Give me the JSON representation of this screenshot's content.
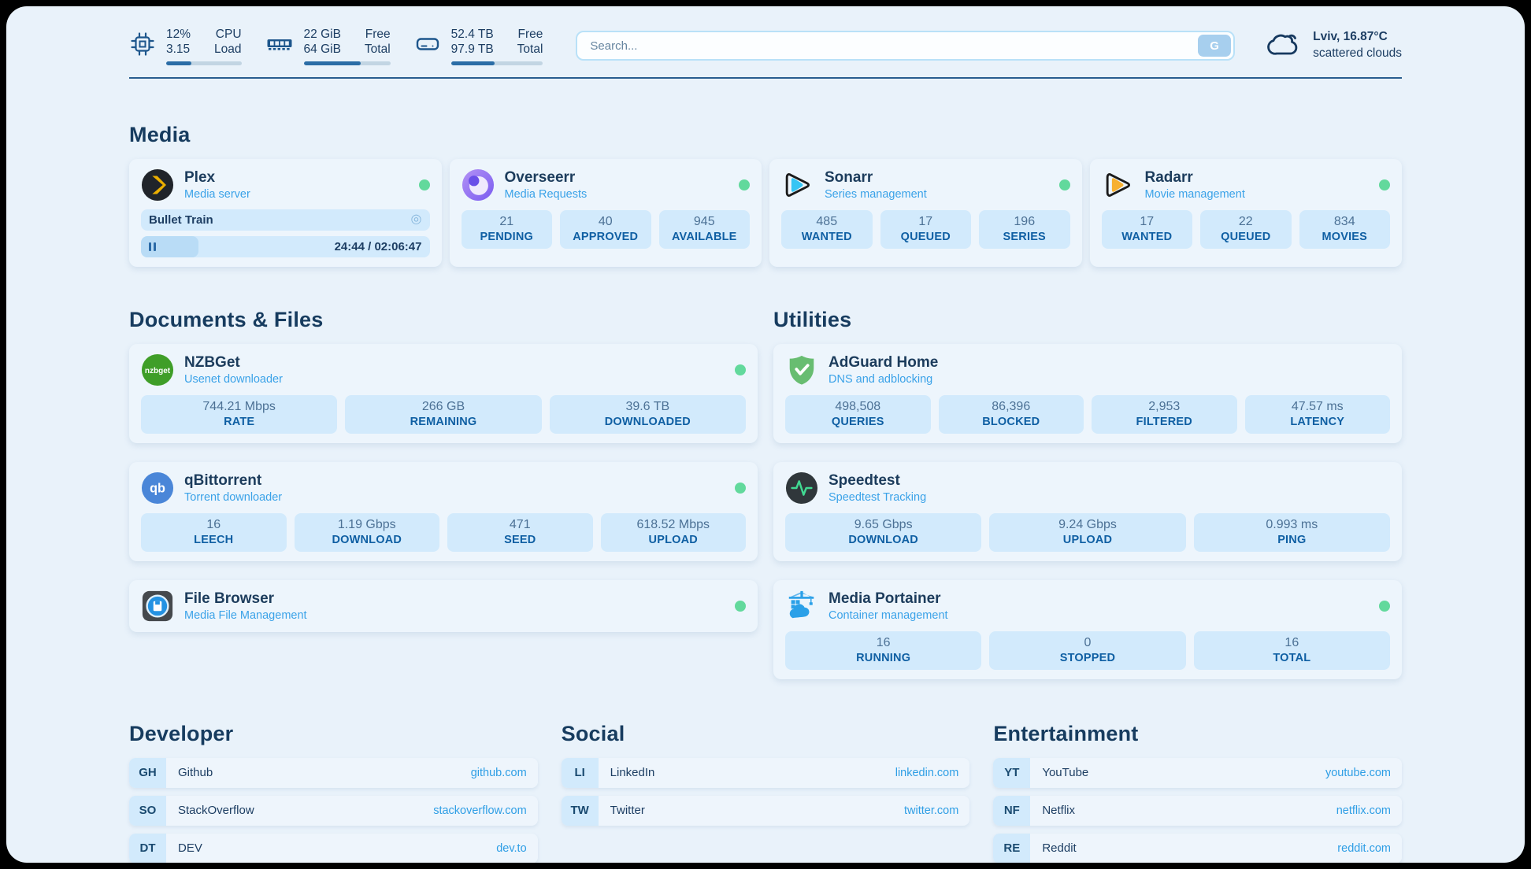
{
  "colors": {
    "accent_link": "#2e9ee5",
    "status_online": "#62d99c",
    "divider": "#2a5d8f",
    "header_text": "#1d3e63",
    "stat_box_bg": "#d2eafc",
    "card_bg": "#edf5fc",
    "page_bg": "#e9f2fa"
  },
  "header": {
    "stats": [
      {
        "icon": "cpu-icon",
        "v1": "12%",
        "v2": "3.15",
        "l1": "CPU",
        "l2": "Load",
        "bar_pct": 34
      },
      {
        "icon": "ram-icon",
        "v1": "22 GiB",
        "v2": "64 GiB",
        "l1": "Free",
        "l2": "Total",
        "bar_pct": 66
      },
      {
        "icon": "disk-icon",
        "v1": "52.4 TB",
        "v2": "97.9 TB",
        "l1": "Free",
        "l2": "Total",
        "bar_pct": 47
      }
    ],
    "search": {
      "placeholder": "Search...",
      "button_label": "G"
    },
    "weather": {
      "icon": "cloud-icon",
      "line1": "Lviv, 16.87°C",
      "line2": "scattered clouds"
    }
  },
  "media": {
    "title": "Media",
    "plex": {
      "title": "Plex",
      "subtitle": "Media server",
      "online": true,
      "now_playing": "Bullet Train",
      "time": "24:44 / 02:06:47",
      "progress_pct": 20
    },
    "overseerr": {
      "title": "Overseerr",
      "subtitle": "Media Requests",
      "online": true,
      "stats": [
        {
          "v": "21",
          "l": "PENDING"
        },
        {
          "v": "40",
          "l": "APPROVED"
        },
        {
          "v": "945",
          "l": "AVAILABLE"
        }
      ]
    },
    "sonarr": {
      "title": "Sonarr",
      "subtitle": "Series management",
      "online": true,
      "stats": [
        {
          "v": "485",
          "l": "WANTED"
        },
        {
          "v": "17",
          "l": "QUEUED"
        },
        {
          "v": "196",
          "l": "SERIES"
        }
      ]
    },
    "radarr": {
      "title": "Radarr",
      "subtitle": "Movie management",
      "online": true,
      "stats": [
        {
          "v": "17",
          "l": "WANTED"
        },
        {
          "v": "22",
          "l": "QUEUED"
        },
        {
          "v": "834",
          "l": "MOVIES"
        }
      ]
    }
  },
  "documents": {
    "title": "Documents & Files",
    "nzbget": {
      "title": "NZBGet",
      "subtitle": "Usenet downloader",
      "online": true,
      "stats": [
        {
          "v": "744.21 Mbps",
          "l": "RATE"
        },
        {
          "v": "266 GB",
          "l": "REMAINING"
        },
        {
          "v": "39.6 TB",
          "l": "DOWNLOADED"
        }
      ]
    },
    "qbittorrent": {
      "title": "qBittorrent",
      "subtitle": "Torrent downloader",
      "online": true,
      "stats": [
        {
          "v": "16",
          "l": "LEECH"
        },
        {
          "v": "1.19 Gbps",
          "l": "DOWNLOAD"
        },
        {
          "v": "471",
          "l": "SEED"
        },
        {
          "v": "618.52 Mbps",
          "l": "UPLOAD"
        }
      ]
    },
    "filebrowser": {
      "title": "File Browser",
      "subtitle": "Media File Management",
      "online": true
    }
  },
  "utilities": {
    "title": "Utilities",
    "adguard": {
      "title": "AdGuard Home",
      "subtitle": "DNS and adblocking",
      "online": false,
      "stats": [
        {
          "v": "498,508",
          "l": "QUERIES"
        },
        {
          "v": "86,396",
          "l": "BLOCKED"
        },
        {
          "v": "2,953",
          "l": "FILTERED"
        },
        {
          "v": "47.57 ms",
          "l": "LATENCY"
        }
      ]
    },
    "speedtest": {
      "title": "Speedtest",
      "subtitle": "Speedtest Tracking",
      "online": false,
      "stats": [
        {
          "v": "9.65 Gbps",
          "l": "DOWNLOAD"
        },
        {
          "v": "9.24 Gbps",
          "l": "UPLOAD"
        },
        {
          "v": "0.993 ms",
          "l": "PING"
        }
      ]
    },
    "portainer": {
      "title": "Media Portainer",
      "subtitle": "Container management",
      "online": true,
      "stats": [
        {
          "v": "16",
          "l": "RUNNING"
        },
        {
          "v": "0",
          "l": "STOPPED"
        },
        {
          "v": "16",
          "l": "TOTAL"
        }
      ]
    }
  },
  "bookmarks": {
    "developer": {
      "title": "Developer",
      "links": [
        {
          "abbr": "GH",
          "name": "Github",
          "url": "github.com"
        },
        {
          "abbr": "SO",
          "name": "StackOverflow",
          "url": "stackoverflow.com"
        },
        {
          "abbr": "DT",
          "name": "DEV",
          "url": "dev.to"
        }
      ]
    },
    "social": {
      "title": "Social",
      "links": [
        {
          "abbr": "LI",
          "name": "LinkedIn",
          "url": "linkedin.com"
        },
        {
          "abbr": "TW",
          "name": "Twitter",
          "url": "twitter.com"
        }
      ]
    },
    "entertainment": {
      "title": "Entertainment",
      "links": [
        {
          "abbr": "YT",
          "name": "YouTube",
          "url": "youtube.com"
        },
        {
          "abbr": "NF",
          "name": "Netflix",
          "url": "netflix.com"
        },
        {
          "abbr": "RE",
          "name": "Reddit",
          "url": "reddit.com"
        }
      ]
    }
  }
}
